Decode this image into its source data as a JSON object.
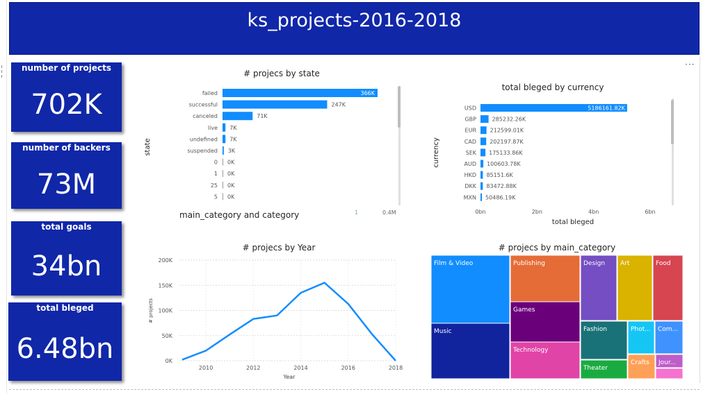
{
  "title": "ks_projects-2016-2018",
  "colors": {
    "banner": "#1027a8",
    "bar": "#118dff"
  },
  "kpis": [
    {
      "label": "number of projects",
      "value": "702K"
    },
    {
      "label": "number of backers",
      "value": "73M"
    },
    {
      "label": "total goals",
      "value": "34bn"
    },
    {
      "label": "total bleged",
      "value": "6.48bn"
    }
  ],
  "more_menu": "···",
  "chart_data": [
    {
      "type": "bar",
      "title": "# projecs by state",
      "ylabel": "state",
      "xlabel": "main_category and category",
      "categories": [
        "failed",
        "successful",
        "canceled",
        "live",
        "undefined",
        "suspended",
        "0",
        "1",
        "25",
        "5"
      ],
      "values": [
        366,
        247,
        71,
        7,
        7,
        3,
        0,
        0,
        0,
        0
      ],
      "data_labels": [
        "366K",
        "247K",
        "71K",
        "7K",
        "7K",
        "3K",
        "0K",
        "0K",
        "0K",
        "0K"
      ],
      "ticks": [
        "1",
        "0.4M"
      ]
    },
    {
      "type": "bar",
      "title": "total bleged by currency",
      "ylabel": "currency",
      "xlabel": "total bleged",
      "categories": [
        "USD",
        "GBP",
        "EUR",
        "CAD",
        "SEK",
        "AUD",
        "HKD",
        "DKK",
        "MXN"
      ],
      "values": [
        5186161.82,
        285232.26,
        212599.01,
        202197.87,
        175133.86,
        100603.78,
        85151.6,
        83472.88,
        50486.19
      ],
      "data_labels": [
        "5186161.82K",
        "285232.26K",
        "212599.01K",
        "202197.87K",
        "175133.86K",
        "100603.78K",
        "85151.6K",
        "83472.88K",
        "50486.19K"
      ],
      "xlim": [
        0,
        6
      ],
      "ticks": [
        "0bn",
        "2bn",
        "4bn",
        "6bn"
      ]
    },
    {
      "type": "line",
      "title": "# projecs by Year",
      "xlabel": "Year",
      "ylabel": "# projects",
      "x": [
        2009,
        2010,
        2011,
        2012,
        2013,
        2014,
        2015,
        2016,
        2017,
        2018
      ],
      "y": [
        2,
        20,
        52,
        83,
        90,
        135,
        155,
        113,
        53,
        0
      ],
      "ylim": [
        0,
        200
      ],
      "y_ticks": [
        "0K",
        "50K",
        "100K",
        "150K",
        "200K"
      ],
      "x_ticks": [
        "2010",
        "2012",
        "2014",
        "2016",
        "2018"
      ]
    },
    {
      "type": "heatmap",
      "title": "# projecs by main_category",
      "items": [
        {
          "label": "Film & Video",
          "color": "#118dff"
        },
        {
          "label": "Music",
          "color": "#12239e"
        },
        {
          "label": "Publishing",
          "color": "#e66c37"
        },
        {
          "label": "Games",
          "color": "#6b007b"
        },
        {
          "label": "Technology",
          "color": "#e044a7"
        },
        {
          "label": "Design",
          "color": "#744ec2"
        },
        {
          "label": "Art",
          "color": "#d9b300"
        },
        {
          "label": "Food",
          "color": "#d64550"
        },
        {
          "label": "Fashion",
          "color": "#197278"
        },
        {
          "label": "Theater",
          "color": "#1aab40"
        },
        {
          "label": "Phot...",
          "color": "#15c6f4"
        },
        {
          "label": "Com...",
          "color": "#4092ff"
        },
        {
          "label": "Crafts",
          "color": "#ffa058"
        },
        {
          "label": "Jour...",
          "color": "#be5dc9"
        },
        {
          "label": "",
          "color": "#f472d0"
        }
      ]
    }
  ]
}
